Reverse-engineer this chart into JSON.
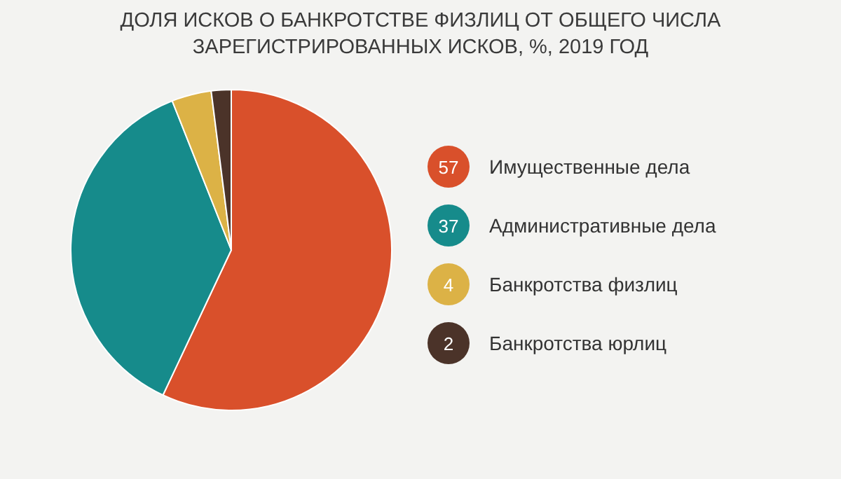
{
  "chart_data": {
    "type": "pie",
    "title": "ДОЛЯ ИСКОВ О БАНКРОТСТВЕ ФИЗЛИЦ ОТ ОБЩЕГО ЧИСЛА ЗАРЕГИСТРИРОВАННЫХ ИСКОВ, %, 2019 ГОД",
    "categories": [
      "Имущественные дела",
      "Административные дела",
      "Банкротства физлиц",
      "Банкротства юрлиц"
    ],
    "values": [
      57,
      37,
      4,
      2
    ],
    "colors": [
      "#d9502b",
      "#168b8b",
      "#dcb246",
      "#4b3329"
    ],
    "legend": "right",
    "data_labels": true
  }
}
